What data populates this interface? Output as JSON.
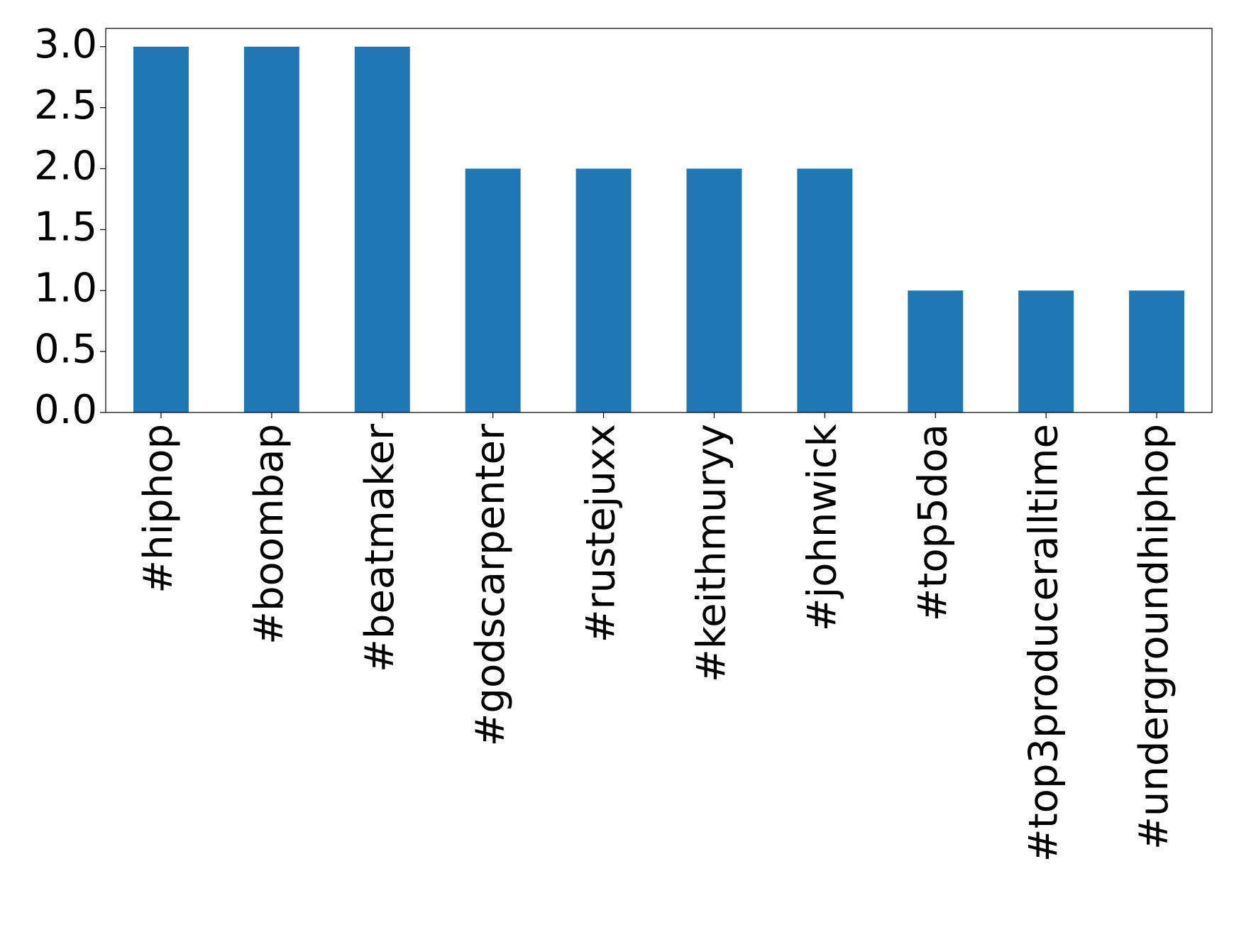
{
  "chart_data": {
    "type": "bar",
    "categories": [
      "#hiphop",
      "#boombap",
      "#beatmaker",
      "#godscarpenter",
      "#rustejuxx",
      "#keithmuryy",
      "#johnwick",
      "#top5doa",
      "#top3produceralltime",
      "#undergroundhiphop"
    ],
    "values": [
      3,
      3,
      3,
      2,
      2,
      2,
      2,
      1,
      1,
      1
    ],
    "color": "#1f77b4",
    "ylim": [
      0,
      3.15
    ],
    "yticks": [
      {
        "value": 0,
        "label": "0.0"
      },
      {
        "value": 0.5,
        "label": "0.5"
      },
      {
        "value": 1,
        "label": "1.0"
      },
      {
        "value": 1.5,
        "label": "1.5"
      },
      {
        "value": 2,
        "label": "2.0"
      },
      {
        "value": 2.5,
        "label": "2.5"
      },
      {
        "value": 3,
        "label": "3.0"
      }
    ],
    "grid": false
  }
}
